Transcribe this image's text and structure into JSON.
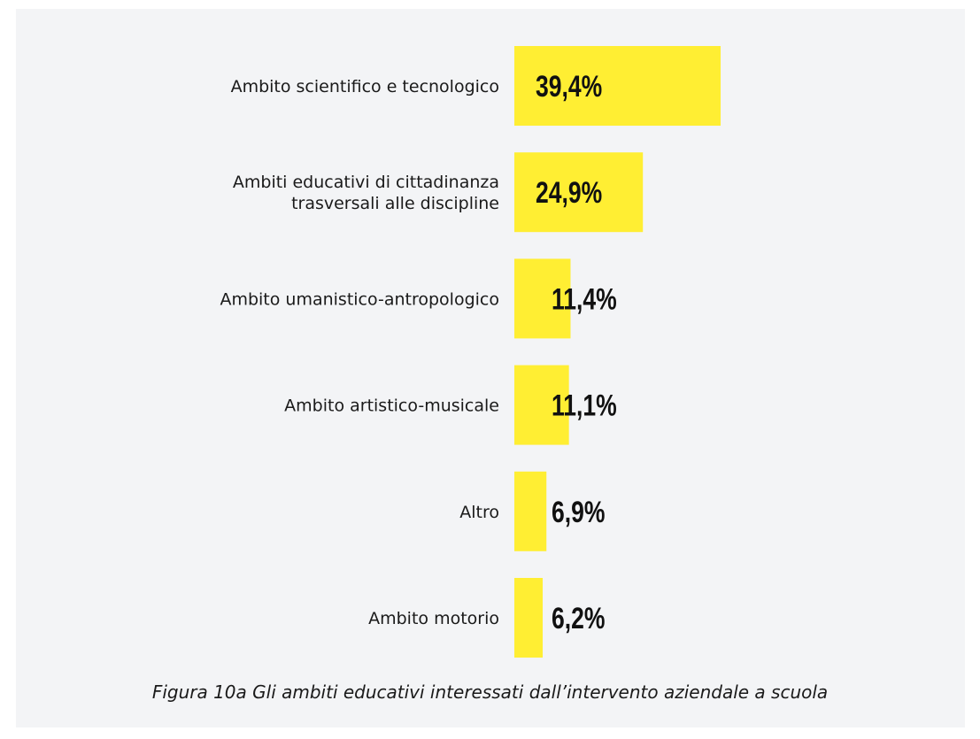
{
  "chart_data": {
    "type": "bar",
    "orientation": "horizontal",
    "categories": [
      [
        "Ambito scientifico e tecnologico"
      ],
      [
        "Ambiti educativi di cittadinanza",
        "trasversali alle discipline"
      ],
      [
        "Ambito umanistico-antropologico"
      ],
      [
        "Ambito artistico-musicale"
      ],
      [
        "Altro"
      ],
      [
        "Ambito motorio"
      ]
    ],
    "values": [
      39.4,
      24.9,
      11.4,
      11.1,
      6.9,
      6.2
    ],
    "value_labels": [
      "39,4%",
      "24,9%",
      "11,4%",
      "11,1%",
      "6,9%",
      "6,2%"
    ],
    "bar_color": "#ffee33",
    "grid": false,
    "legend": "none"
  },
  "caption": "Figura 10a Gli ambiti educativi interessati dall’intervento aziendale a scuola",
  "colors": {
    "background": "#f3f4f6",
    "text": "#111111"
  }
}
